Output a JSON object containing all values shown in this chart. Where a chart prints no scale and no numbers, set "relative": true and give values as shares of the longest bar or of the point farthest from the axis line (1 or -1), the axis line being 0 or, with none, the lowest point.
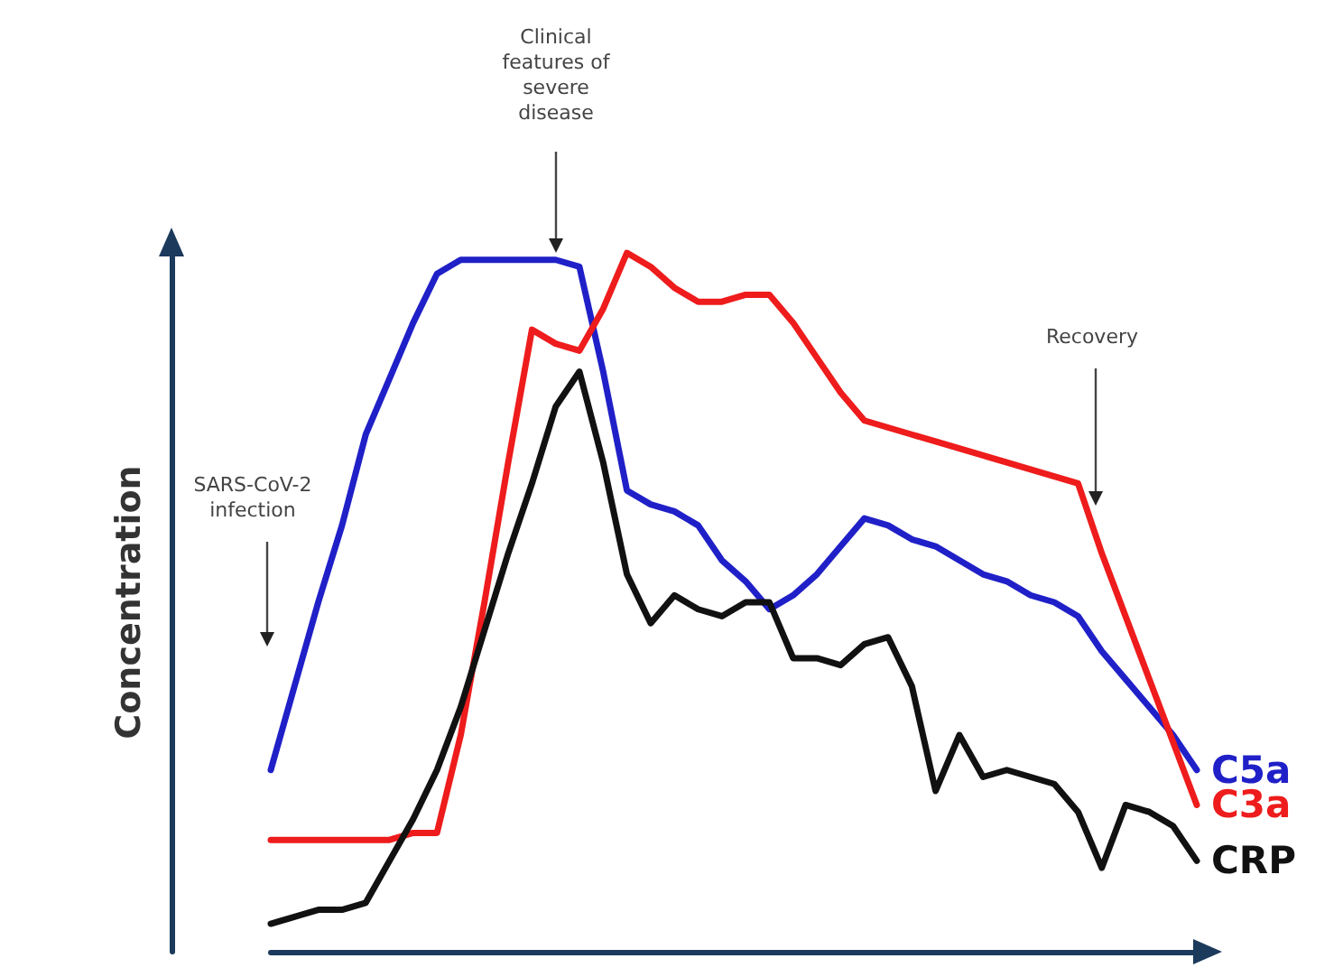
{
  "chart_data": {
    "type": "line",
    "relative": true,
    "ylabel": "Concentration",
    "legend": false,
    "grid": false,
    "marker": "none",
    "line_style": "solid",
    "tick_labels": false,
    "categories": [
      null,
      null,
      null,
      null,
      null,
      null,
      null,
      null,
      null,
      null,
      null,
      null,
      null,
      null,
      null,
      null,
      null,
      null,
      null,
      null,
      null,
      null,
      null,
      null,
      null,
      null,
      null,
      null,
      null,
      null,
      null,
      null,
      null,
      null,
      null,
      null,
      null,
      null,
      null,
      null
    ],
    "annotations": [
      "SARS-CoV-2 infection",
      "Clinical features of severe disease",
      "Recovery"
    ],
    "series": [
      {
        "name": "C5a",
        "color": "#2020c8",
        "values": [
          0.26,
          0.38,
          0.5,
          0.61,
          0.74,
          0.82,
          0.9,
          0.97,
          0.99,
          0.99,
          0.99,
          0.99,
          0.99,
          0.98,
          0.83,
          0.66,
          0.64,
          0.63,
          0.61,
          0.56,
          0.53,
          0.49,
          0.51,
          0.54,
          0.58,
          0.62,
          0.61,
          0.59,
          0.58,
          0.56,
          0.54,
          0.53,
          0.51,
          0.5,
          0.48,
          0.43,
          0.39,
          0.35,
          0.31,
          0.26
        ]
      },
      {
        "name": "C3a",
        "color": "#ee1c1c",
        "values": [
          0.16,
          0.16,
          0.16,
          0.16,
          0.16,
          0.16,
          0.17,
          0.17,
          0.31,
          0.5,
          0.7,
          0.89,
          0.87,
          0.86,
          0.92,
          1,
          0.98,
          0.95,
          0.93,
          0.93,
          0.94,
          0.94,
          0.9,
          0.85,
          0.8,
          0.76,
          0.75,
          0.74,
          0.73,
          0.72,
          0.71,
          0.7,
          0.69,
          0.68,
          0.67,
          0.57,
          0.48,
          0.39,
          0.3,
          0.21
        ]
      },
      {
        "name": "CRP",
        "color": "#111111",
        "values": [
          0.04,
          0.05,
          0.06,
          0.06,
          0.07,
          0.13,
          0.19,
          0.26,
          0.35,
          0.46,
          0.57,
          0.67,
          0.78,
          0.83,
          0.7,
          0.54,
          0.47,
          0.51,
          0.49,
          0.48,
          0.5,
          0.5,
          0.42,
          0.42,
          0.41,
          0.44,
          0.45,
          0.38,
          0.23,
          0.31,
          0.25,
          0.26,
          0.25,
          0.24,
          0.2,
          0.12,
          0.21,
          0.2,
          0.18,
          0.13
        ]
      }
    ]
  }
}
